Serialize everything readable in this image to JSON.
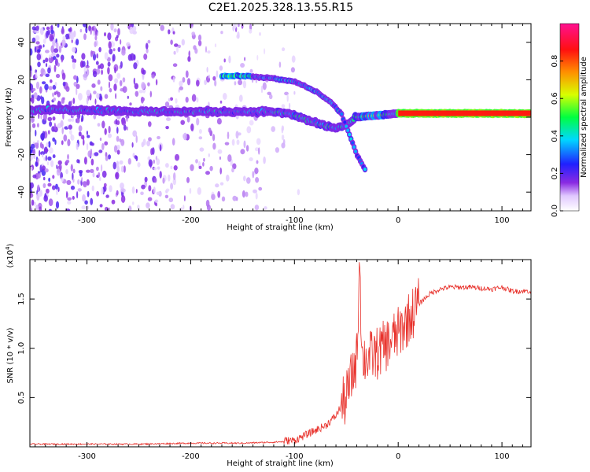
{
  "title": "C2E1.2025.328.13.55.R15",
  "chart_data": [
    {
      "type": "heatmap",
      "name": "spectrogram",
      "xlabel": "Height of straight line (km)",
      "ylabel": "Frequency (Hz)",
      "xlim": [
        -355,
        128
      ],
      "ylim": [
        -50,
        50
      ],
      "xticks": [
        -300,
        -200,
        -100,
        0,
        100
      ],
      "xtick_labels": [
        "-300",
        "-200",
        "-100",
        "0",
        "100"
      ],
      "yticks": [
        -40,
        -20,
        0,
        20,
        40
      ],
      "ytick_labels": [
        "-40",
        "-20",
        "0",
        "20",
        "40"
      ],
      "colorbar": {
        "label": "Normalized spectral amplitude",
        "range": [
          0,
          1
        ],
        "ticks": [
          0.0,
          0.2,
          0.4,
          0.6,
          0.8
        ],
        "tick_labels": [
          "0.0",
          "0.2",
          "0.4",
          "0.6",
          "0.8"
        ]
      },
      "tracks": [
        {
          "name": "main-carrier",
          "points": [
            [
              -355,
              4
            ],
            [
              -300,
              4
            ],
            [
              -250,
              3
            ],
            [
              -200,
              3
            ],
            [
              -160,
              3
            ],
            [
              -120,
              3
            ],
            [
              -100,
              1
            ],
            [
              -80,
              -3
            ],
            [
              -60,
              -6
            ],
            [
              -50,
              -4
            ],
            [
              -40,
              0
            ],
            [
              -20,
              1
            ],
            [
              0,
              2
            ],
            [
              50,
              2
            ],
            [
              100,
              2
            ],
            [
              128,
              2
            ]
          ]
        },
        {
          "name": "upper-track",
          "points": [
            [
              -170,
              22
            ],
            [
              -150,
              22
            ],
            [
              -125,
              21
            ],
            [
              -100,
              19
            ],
            [
              -80,
              14
            ],
            [
              -65,
              8
            ],
            [
              -55,
              2
            ],
            [
              -50,
              -5
            ],
            [
              -45,
              -12
            ],
            [
              -40,
              -20
            ],
            [
              -32,
              -28
            ]
          ]
        }
      ]
    },
    {
      "type": "line",
      "name": "snr",
      "xlabel": "Height of straight line (km)",
      "ylabel": "SNR (10 * v/v)",
      "scale_label": "(x10",
      "scale_exponent": "4",
      "xlim": [
        -355,
        128
      ],
      "ylim": [
        0,
        1.9
      ],
      "xticks": [
        -300,
        -200,
        -100,
        0,
        100
      ],
      "xtick_labels": [
        "-300",
        "-200",
        "-100",
        "0",
        "100"
      ],
      "yticks": [
        0.5,
        1.0,
        1.5
      ],
      "ytick_labels": [
        "0.5",
        "1.0",
        "1.5"
      ],
      "color": "#e8322c",
      "series": [
        {
          "name": "SNR",
          "x": [
            -355,
            -300,
            -250,
            -200,
            -150,
            -120,
            -100,
            -90,
            -80,
            -70,
            -60,
            -50,
            -45,
            -40,
            -37,
            -35,
            -30,
            -20,
            -10,
            0,
            10,
            20,
            30,
            40,
            50,
            70,
            90,
            100,
            110,
            128
          ],
          "y": [
            0.02,
            0.02,
            0.02,
            0.03,
            0.03,
            0.04,
            0.05,
            0.1,
            0.15,
            0.2,
            0.3,
            0.5,
            0.7,
            0.9,
            1.9,
            0.9,
            0.9,
            0.95,
            1.05,
            1.15,
            1.3,
            1.45,
            1.55,
            1.6,
            1.62,
            1.62,
            1.6,
            1.62,
            1.58,
            1.58
          ]
        }
      ]
    }
  ]
}
